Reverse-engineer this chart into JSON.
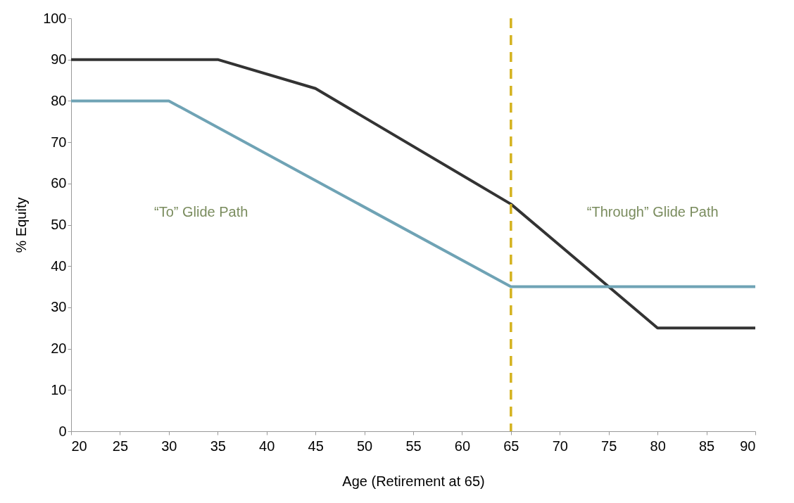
{
  "chart_data": {
    "type": "line",
    "xlabel": "Age (Retirement at 65)",
    "ylabel": "% Equity",
    "xlim": [
      20,
      90
    ],
    "xticks": [
      20,
      25,
      30,
      35,
      40,
      45,
      50,
      55,
      60,
      65,
      70,
      75,
      80,
      85,
      90
    ],
    "ylim": [
      0,
      100
    ],
    "yticks": [
      0,
      10,
      20,
      30,
      40,
      50,
      60,
      70,
      80,
      90,
      100
    ],
    "grid": false,
    "legend": false,
    "marker": "none",
    "line_style": "solid",
    "series": [
      {
        "color": "#333333",
        "x": [
          20,
          35,
          45,
          65,
          80,
          90
        ],
        "values": [
          90,
          90,
          83,
          55,
          25,
          25
        ]
      },
      {
        "color": "#6fa3b5",
        "x": [
          20,
          30,
          65,
          90
        ],
        "values": [
          80,
          80,
          35,
          35
        ]
      }
    ],
    "ref_lines": [
      {
        "axis": "x",
        "value": 65,
        "color": "#d4b21e",
        "line_style": "dashed"
      }
    ],
    "annotations": [
      "“To” Glide Path",
      "“Through” Glide Path"
    ]
  }
}
